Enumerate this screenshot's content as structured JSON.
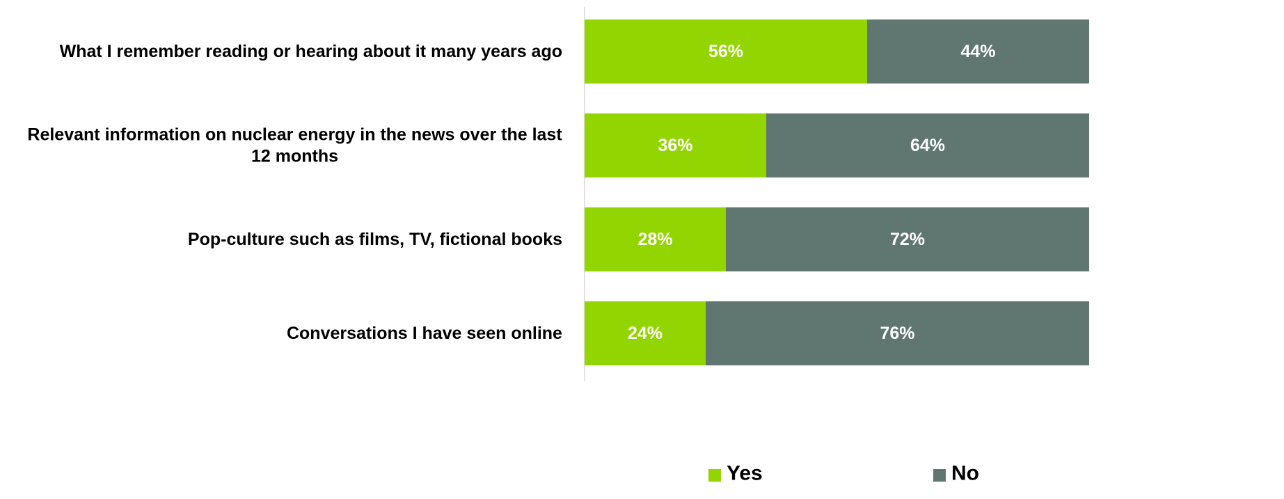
{
  "chart_data": {
    "type": "bar",
    "orientation": "horizontal",
    "stacked": true,
    "percent_stacked": true,
    "categories": [
      [
        "What I remember reading or hearing about it many years ago"
      ],
      [
        "Relevant information on nuclear energy in the news over the last",
        "12 months"
      ],
      [
        "Pop-culture such as films, TV, fictional books"
      ],
      [
        "Conversations I have seen online"
      ]
    ],
    "series": [
      {
        "name": "Yes",
        "color": "#93d500",
        "values": [
          56,
          36,
          28,
          24
        ]
      },
      {
        "name": "No",
        "color": "#5f7671",
        "values": [
          44,
          64,
          72,
          76
        ]
      }
    ],
    "value_format": "percent",
    "xlim": [
      0,
      100
    ],
    "grid": false,
    "legend": "bottom"
  }
}
